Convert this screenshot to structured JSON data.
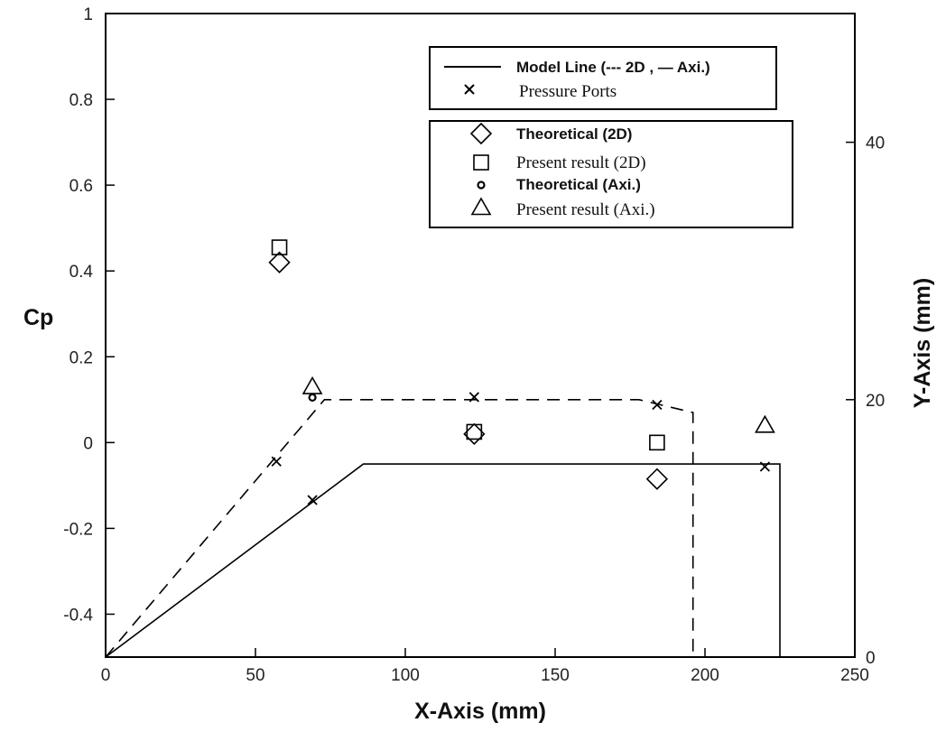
{
  "chart_data": {
    "type": "scatter",
    "xlabel": "X-Axis (mm)",
    "ylabel": "Cp",
    "y2label": "Y-Axis (mm)",
    "xlim": [
      0,
      250
    ],
    "ylim": [
      -0.5,
      1
    ],
    "y2lim": [
      0,
      50
    ],
    "x_ticks": [
      "0",
      "50",
      "100",
      "150",
      "200",
      "250"
    ],
    "y_ticks": [
      "-0.4",
      "-0.2",
      "0",
      "0.2",
      "0.4",
      "0.6",
      "0.8",
      "1"
    ],
    "y2_ticks": [
      "0",
      "20",
      "40"
    ],
    "grid": false,
    "model_lines": [
      {
        "name": "2D",
        "style": "dashed",
        "x": [
          0,
          73,
          178,
          196,
          196
        ],
        "y": [
          0,
          20,
          20,
          19,
          0
        ]
      },
      {
        "name": "Axi.",
        "style": "solid",
        "x": [
          0,
          86,
          225,
          225
        ],
        "y": [
          0,
          15,
          15,
          0
        ]
      }
    ],
    "pressure_ports": {
      "x": [
        57,
        69,
        123,
        184,
        220
      ],
      "y": [
        15.2,
        12.2,
        20.2,
        19.6,
        14.8
      ]
    },
    "series": [
      {
        "name": "Theoretical  (2D)",
        "marker": "diamond",
        "x": [
          58,
          123,
          184
        ],
        "y": [
          0.42,
          0.02,
          -0.085
        ]
      },
      {
        "name": "Present result (2D)",
        "marker": "square",
        "x": [
          58,
          123,
          184
        ],
        "y": [
          0.455,
          0.025,
          0.0
        ]
      },
      {
        "name": "Theoretical  (Axi.)",
        "marker": "circle",
        "x": [
          69
        ],
        "y": [
          0.105
        ]
      },
      {
        "name": "Present result (Axi.)",
        "marker": "triangle",
        "x": [
          69,
          220
        ],
        "y": [
          0.13,
          0.04
        ]
      }
    ],
    "legend1": {
      "model_line_label": "Model Line (--- 2D , — Axi.)",
      "ports_label": "Pressure Ports"
    },
    "legend_placement": "top-right"
  }
}
